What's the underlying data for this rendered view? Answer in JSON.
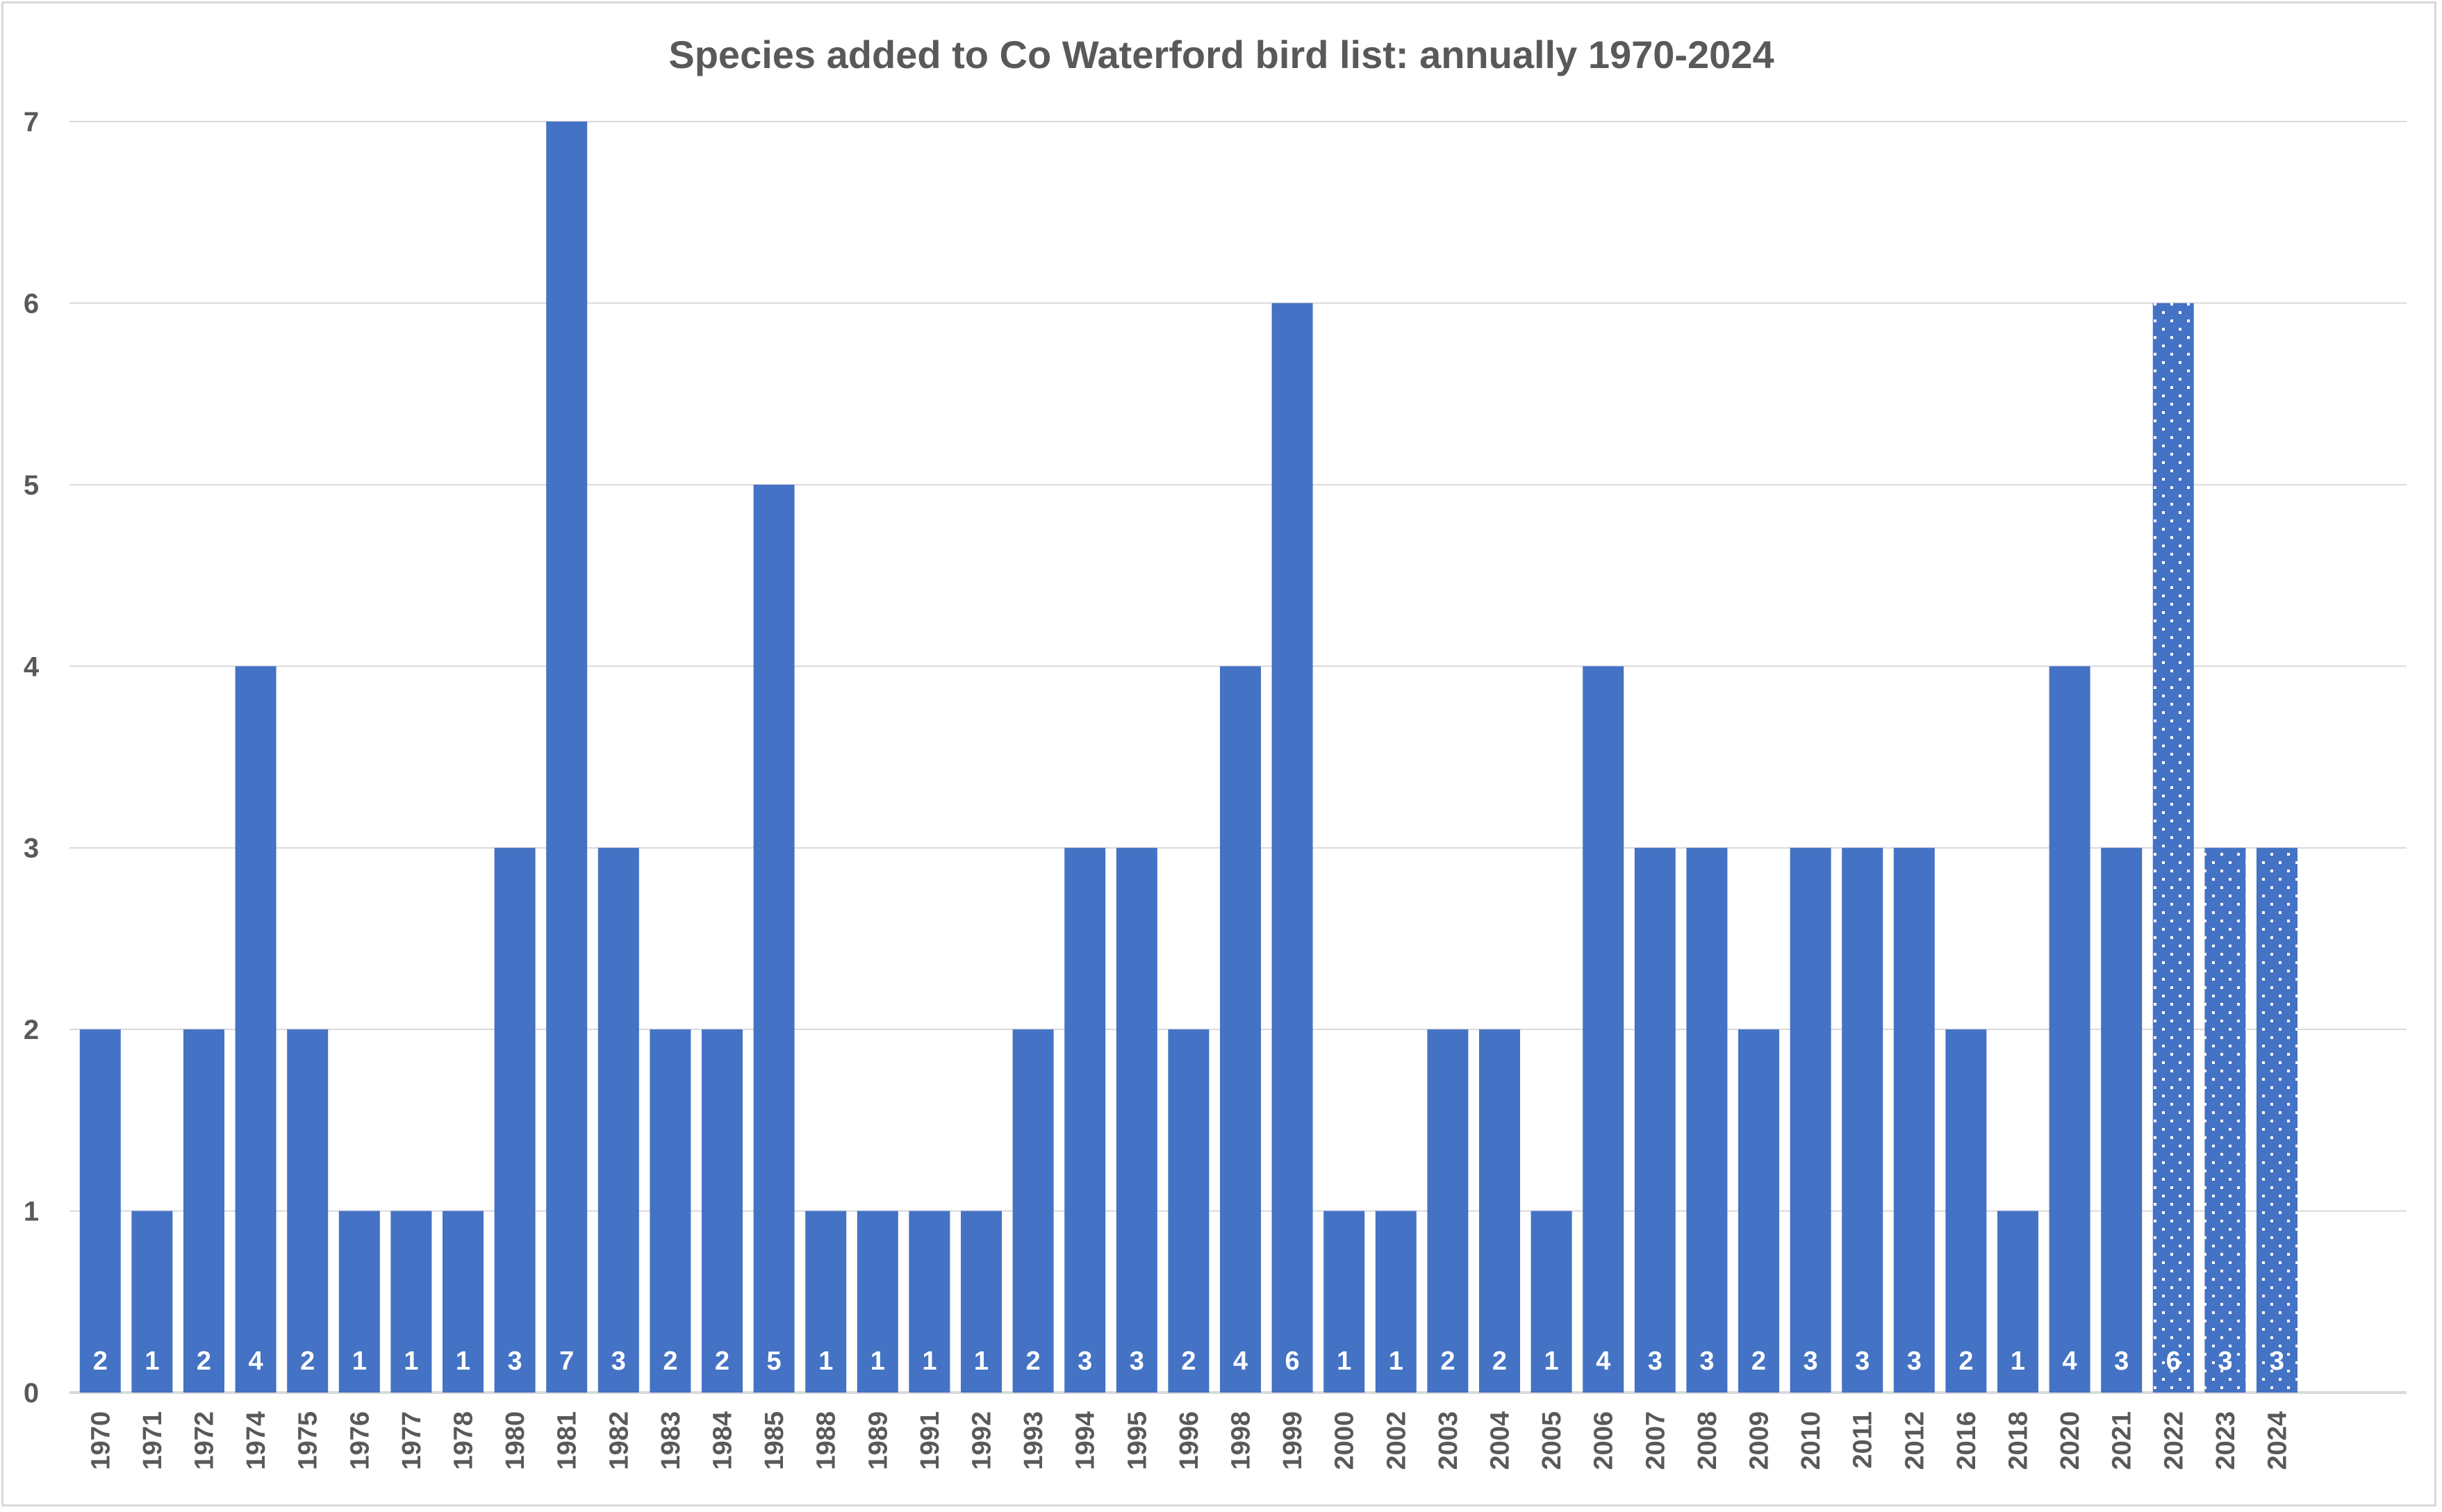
{
  "chart_data": {
    "type": "bar",
    "title": "Species added to Co Waterford bird list: annually 1970-2024",
    "xlabel": "",
    "ylabel": "",
    "ylim": [
      0,
      7
    ],
    "yticks": [
      0,
      1,
      2,
      3,
      4,
      5,
      6,
      7
    ],
    "grid": true,
    "legend": "none",
    "bar_color": "#4472C4",
    "categories": [
      "1970",
      "1971",
      "1972",
      "1974",
      "1975",
      "1976",
      "1977",
      "1978",
      "1980",
      "1981",
      "1982",
      "1983",
      "1984",
      "1985",
      "1988",
      "1989",
      "1991",
      "1992",
      "1993",
      "1994",
      "1995",
      "1996",
      "1998",
      "1999",
      "2000",
      "2002",
      "2003",
      "2004",
      "2005",
      "2006",
      "2007",
      "2008",
      "2009",
      "2010",
      "2011",
      "2012",
      "2016",
      "2018",
      "2020",
      "2021",
      "2022",
      "2023",
      "2024"
    ],
    "values": [
      2,
      1,
      2,
      4,
      2,
      1,
      1,
      1,
      3,
      7,
      3,
      2,
      2,
      5,
      1,
      1,
      1,
      1,
      2,
      3,
      3,
      2,
      4,
      6,
      1,
      1,
      2,
      2,
      1,
      4,
      3,
      3,
      2,
      3,
      3,
      3,
      2,
      1,
      4,
      3,
      6,
      3,
      3
    ],
    "dotted_pattern_categories": [
      "2022",
      "2023",
      "2024"
    ],
    "data_labels": true
  }
}
